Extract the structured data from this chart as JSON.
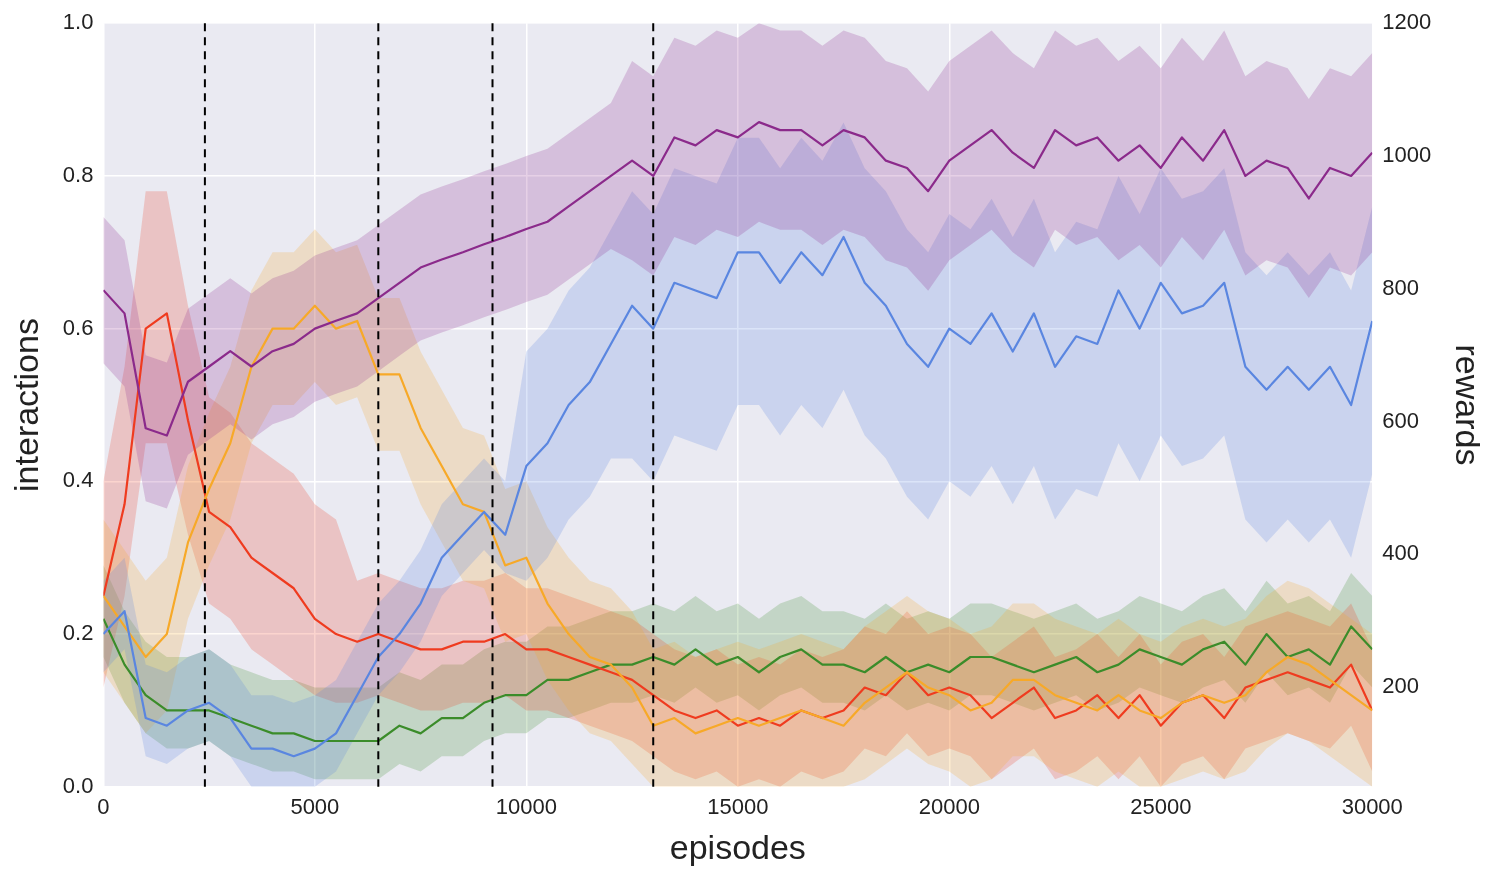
{
  "chart_data": {
    "type": "line",
    "xlabel": "episodes",
    "ylabel": "interactions",
    "y2label": "rewards",
    "x": [
      0,
      500,
      1000,
      1500,
      2000,
      2500,
      3000,
      3500,
      4000,
      4500,
      5000,
      5500,
      6000,
      6500,
      7000,
      7500,
      8000,
      8500,
      9000,
      9500,
      10000,
      10500,
      11000,
      11500,
      12000,
      12500,
      13000,
      13500,
      14000,
      14500,
      15000,
      15500,
      16000,
      16500,
      17000,
      17500,
      18000,
      18500,
      19000,
      19500,
      20000,
      20500,
      21000,
      21500,
      22000,
      22500,
      23000,
      23500,
      24000,
      24500,
      25000,
      25500,
      26000,
      26500,
      27000,
      27500,
      28000,
      28500,
      29000,
      29500,
      30000
    ],
    "xlim": [
      0,
      30000
    ],
    "xticks": [
      0,
      5000,
      10000,
      15000,
      20000,
      25000,
      30000
    ],
    "ylim": [
      0,
      1
    ],
    "yticks": [
      {
        "value": 0,
        "label": "0.0"
      },
      0.2,
      0.4,
      0.6,
      0.8,
      {
        "value": 1,
        "label": "1.0"
      }
    ],
    "y2lim": [
      50,
      1200
    ],
    "y2ticks": [
      200,
      400,
      600,
      800,
      1000,
      1200
    ],
    "grid": true,
    "marker": "none",
    "series": [
      {
        "color": "#8b2a8b",
        "axis": "y2",
        "values": [
          798,
          763,
          590,
          579,
          660,
          683,
          706,
          683,
          706,
          717,
          740,
          752,
          763,
          786,
          809,
          832,
          844,
          855,
          867,
          878,
          890,
          901,
          924,
          947,
          970,
          993,
          970,
          1028,
          1016,
          1039,
          1028,
          1051,
          1039,
          1039,
          1016,
          1039,
          1028,
          993,
          982,
          947,
          993,
          1016,
          1039,
          1005,
          982,
          1039,
          1016,
          1028,
          993,
          1016,
          982,
          1028,
          993,
          1039,
          970,
          993,
          982,
          936,
          982,
          970,
          1005
        ],
        "lower": [
          688,
          653,
          480,
          469,
          550,
          573,
          596,
          573,
          596,
          607,
          630,
          642,
          653,
          676,
          699,
          722,
          734,
          745,
          757,
          768,
          780,
          791,
          814,
          837,
          860,
          843,
          820,
          878,
          866,
          889,
          878,
          901,
          889,
          889,
          866,
          889,
          878,
          843,
          832,
          797,
          843,
          866,
          889,
          855,
          832,
          889,
          866,
          878,
          843,
          866,
          832,
          878,
          843,
          889,
          820,
          843,
          832,
          786,
          832,
          820,
          855
        ],
        "upper": [
          908,
          873,
          700,
          689,
          770,
          793,
          816,
          793,
          816,
          827,
          850,
          862,
          873,
          896,
          919,
          942,
          954,
          965,
          977,
          988,
          1000,
          1011,
          1034,
          1057,
          1080,
          1143,
          1120,
          1178,
          1166,
          1189,
          1178,
          1200,
          1189,
          1189,
          1166,
          1189,
          1178,
          1143,
          1132,
          1097,
          1143,
          1166,
          1189,
          1155,
          1132,
          1189,
          1166,
          1178,
          1143,
          1166,
          1132,
          1178,
          1143,
          1189,
          1120,
          1143,
          1132,
          1086,
          1132,
          1120,
          1155
        ]
      },
      {
        "color": "#5a86e0",
        "values": [
          0.2,
          0.23,
          0.09,
          0.08,
          0.1,
          0.11,
          0.09,
          0.05,
          0.05,
          0.04,
          0.05,
          0.07,
          0.12,
          0.17,
          0.2,
          0.24,
          0.3,
          0.33,
          0.36,
          0.33,
          0.42,
          0.45,
          0.5,
          0.53,
          0.58,
          0.63,
          0.6,
          0.66,
          0.65,
          0.64,
          0.7,
          0.7,
          0.66,
          0.7,
          0.67,
          0.72,
          0.66,
          0.63,
          0.58,
          0.55,
          0.6,
          0.58,
          0.62,
          0.57,
          0.62,
          0.55,
          0.59,
          0.58,
          0.65,
          0.6,
          0.66,
          0.62,
          0.63,
          0.66,
          0.55,
          0.52,
          0.55,
          0.52,
          0.55,
          0.5,
          0.61
        ],
        "lower": [
          0.15,
          0.18,
          0.04,
          0.03,
          0.05,
          0.06,
          0.04,
          0,
          0,
          0,
          0,
          0.02,
          0.07,
          0.12,
          0.15,
          0.19,
          0.25,
          0.28,
          0.31,
          0.28,
          0.27,
          0.3,
          0.35,
          0.38,
          0.43,
          0.43,
          0.4,
          0.46,
          0.45,
          0.44,
          0.5,
          0.5,
          0.46,
          0.5,
          0.47,
          0.52,
          0.46,
          0.43,
          0.38,
          0.35,
          0.4,
          0.38,
          0.42,
          0.37,
          0.42,
          0.35,
          0.39,
          0.38,
          0.45,
          0.4,
          0.46,
          0.42,
          0.43,
          0.46,
          0.35,
          0.32,
          0.35,
          0.32,
          0.35,
          0.3,
          0.41
        ],
        "upper": [
          0.27,
          0.3,
          0.16,
          0.15,
          0.17,
          0.18,
          0.16,
          0.12,
          0.12,
          0.11,
          0.12,
          0.14,
          0.19,
          0.24,
          0.27,
          0.31,
          0.37,
          0.4,
          0.43,
          0.4,
          0.57,
          0.6,
          0.65,
          0.68,
          0.73,
          0.78,
          0.75,
          0.81,
          0.8,
          0.79,
          0.85,
          0.85,
          0.81,
          0.85,
          0.82,
          0.87,
          0.81,
          0.78,
          0.73,
          0.7,
          0.75,
          0.73,
          0.77,
          0.72,
          0.77,
          0.7,
          0.74,
          0.73,
          0.8,
          0.75,
          0.81,
          0.77,
          0.78,
          0.81,
          0.7,
          0.67,
          0.7,
          0.67,
          0.7,
          0.65,
          0.76
        ]
      },
      {
        "color": "#f7a928",
        "values": [
          0.25,
          0.21,
          0.17,
          0.2,
          0.32,
          0.39,
          0.45,
          0.55,
          0.6,
          0.6,
          0.63,
          0.6,
          0.61,
          0.54,
          0.54,
          0.47,
          0.42,
          0.37,
          0.36,
          0.29,
          0.3,
          0.24,
          0.2,
          0.17,
          0.16,
          0.13,
          0.08,
          0.09,
          0.07,
          0.08,
          0.09,
          0.08,
          0.09,
          0.1,
          0.09,
          0.08,
          0.11,
          0.13,
          0.15,
          0.13,
          0.12,
          0.1,
          0.11,
          0.14,
          0.14,
          0.12,
          0.11,
          0.1,
          0.12,
          0.1,
          0.09,
          0.11,
          0.12,
          0.11,
          0.12,
          0.15,
          0.17,
          0.16,
          0.14,
          0.12,
          0.1
        ],
        "lower": [
          0.15,
          0.11,
          0.07,
          0.1,
          0.22,
          0.29,
          0.35,
          0.45,
          0.5,
          0.5,
          0.53,
          0.5,
          0.51,
          0.44,
          0.44,
          0.37,
          0.32,
          0.27,
          0.26,
          0.19,
          0.2,
          0.14,
          0.1,
          0.07,
          0.06,
          0.03,
          0,
          0,
          0,
          0,
          0,
          0,
          0,
          0,
          0,
          0,
          0.01,
          0.03,
          0.05,
          0.03,
          0.02,
          0,
          0.01,
          0.04,
          0.04,
          0.02,
          0.01,
          0,
          0.02,
          0,
          0,
          0.01,
          0.02,
          0.01,
          0.02,
          0.05,
          0.07,
          0.06,
          0.04,
          0.02,
          0
        ],
        "upper": [
          0.35,
          0.31,
          0.27,
          0.3,
          0.42,
          0.49,
          0.55,
          0.65,
          0.7,
          0.7,
          0.73,
          0.7,
          0.71,
          0.64,
          0.64,
          0.57,
          0.52,
          0.47,
          0.46,
          0.39,
          0.4,
          0.34,
          0.3,
          0.27,
          0.26,
          0.23,
          0.18,
          0.19,
          0.17,
          0.18,
          0.19,
          0.18,
          0.19,
          0.2,
          0.19,
          0.18,
          0.21,
          0.23,
          0.25,
          0.23,
          0.22,
          0.2,
          0.21,
          0.24,
          0.24,
          0.22,
          0.21,
          0.2,
          0.22,
          0.2,
          0.19,
          0.21,
          0.22,
          0.21,
          0.22,
          0.25,
          0.27,
          0.26,
          0.24,
          0.22,
          0.2
        ]
      },
      {
        "color": "#ef3b1f",
        "values": [
          0.25,
          0.37,
          0.6,
          0.62,
          0.48,
          0.36,
          0.34,
          0.3,
          0.28,
          0.26,
          0.22,
          0.2,
          0.19,
          0.2,
          0.19,
          0.18,
          0.18,
          0.19,
          0.19,
          0.2,
          0.18,
          0.18,
          0.17,
          0.16,
          0.15,
          0.14,
          0.12,
          0.1,
          0.09,
          0.1,
          0.08,
          0.09,
          0.08,
          0.1,
          0.09,
          0.1,
          0.13,
          0.12,
          0.15,
          0.12,
          0.13,
          0.12,
          0.09,
          0.11,
          0.13,
          0.09,
          0.1,
          0.12,
          0.09,
          0.12,
          0.08,
          0.11,
          0.12,
          0.09,
          0.13,
          0.14,
          0.15,
          0.14,
          0.13,
          0.16,
          0.1
        ],
        "lower": [
          0.13,
          0.25,
          0.45,
          0.45,
          0.33,
          0.24,
          0.22,
          0.18,
          0.16,
          0.14,
          0.12,
          0.11,
          0.11,
          0.12,
          0.11,
          0.1,
          0.1,
          0.11,
          0.11,
          0.12,
          0.1,
          0.1,
          0.09,
          0.08,
          0.07,
          0.06,
          0.04,
          0.02,
          0.01,
          0.02,
          0,
          0.01,
          0,
          0.02,
          0.01,
          0.02,
          0.05,
          0.04,
          0.07,
          0.04,
          0.05,
          0.04,
          0.01,
          0.03,
          0.05,
          0.01,
          0.02,
          0.04,
          0.01,
          0.04,
          0,
          0.03,
          0.04,
          0.01,
          0.05,
          0.06,
          0.07,
          0.06,
          0.05,
          0.08,
          0.02
        ],
        "upper": [
          0.4,
          0.55,
          0.78,
          0.78,
          0.63,
          0.51,
          0.49,
          0.45,
          0.43,
          0.41,
          0.37,
          0.35,
          0.27,
          0.28,
          0.27,
          0.26,
          0.26,
          0.27,
          0.27,
          0.28,
          0.26,
          0.26,
          0.25,
          0.24,
          0.23,
          0.22,
          0.2,
          0.18,
          0.17,
          0.18,
          0.16,
          0.17,
          0.16,
          0.18,
          0.17,
          0.18,
          0.21,
          0.2,
          0.23,
          0.2,
          0.21,
          0.2,
          0.17,
          0.19,
          0.21,
          0.17,
          0.18,
          0.2,
          0.17,
          0.2,
          0.16,
          0.19,
          0.2,
          0.17,
          0.21,
          0.22,
          0.23,
          0.22,
          0.21,
          0.24,
          0.18
        ]
      },
      {
        "color": "#3b8c2a",
        "values": [
          0.22,
          0.16,
          0.12,
          0.1,
          0.1,
          0.1,
          0.09,
          0.08,
          0.07,
          0.07,
          0.06,
          0.06,
          0.06,
          0.06,
          0.08,
          0.07,
          0.09,
          0.09,
          0.11,
          0.12,
          0.12,
          0.14,
          0.14,
          0.15,
          0.16,
          0.16,
          0.17,
          0.16,
          0.18,
          0.16,
          0.17,
          0.15,
          0.17,
          0.18,
          0.16,
          0.16,
          0.15,
          0.17,
          0.15,
          0.16,
          0.15,
          0.17,
          0.17,
          0.16,
          0.15,
          0.16,
          0.17,
          0.15,
          0.16,
          0.18,
          0.17,
          0.16,
          0.18,
          0.19,
          0.16,
          0.2,
          0.17,
          0.18,
          0.16,
          0.21,
          0.18
        ],
        "lower": [
          0.17,
          0.11,
          0.07,
          0.05,
          0.05,
          0.06,
          0.04,
          0.03,
          0.02,
          0.02,
          0.01,
          0.01,
          0.01,
          0.01,
          0.03,
          0.02,
          0.04,
          0.04,
          0.06,
          0.07,
          0.07,
          0.09,
          0.09,
          0.1,
          0.11,
          0.11,
          0.12,
          0.11,
          0.13,
          0.11,
          0.12,
          0.1,
          0.12,
          0.13,
          0.11,
          0.11,
          0.1,
          0.12,
          0.1,
          0.11,
          0.1,
          0.12,
          0.12,
          0.11,
          0.1,
          0.11,
          0.12,
          0.1,
          0.11,
          0.13,
          0.12,
          0.11,
          0.13,
          0.14,
          0.11,
          0.15,
          0.12,
          0.13,
          0.11,
          0.16,
          0.13
        ],
        "upper": [
          0.29,
          0.23,
          0.19,
          0.17,
          0.17,
          0.18,
          0.16,
          0.15,
          0.14,
          0.14,
          0.13,
          0.13,
          0.13,
          0.13,
          0.15,
          0.14,
          0.16,
          0.16,
          0.18,
          0.19,
          0.19,
          0.21,
          0.21,
          0.22,
          0.23,
          0.23,
          0.24,
          0.23,
          0.25,
          0.23,
          0.24,
          0.22,
          0.24,
          0.25,
          0.23,
          0.23,
          0.22,
          0.24,
          0.22,
          0.23,
          0.22,
          0.24,
          0.24,
          0.23,
          0.22,
          0.23,
          0.24,
          0.22,
          0.23,
          0.25,
          0.24,
          0.23,
          0.25,
          0.26,
          0.23,
          0.27,
          0.24,
          0.25,
          0.23,
          0.28,
          0.25
        ]
      }
    ],
    "ref_lines": [
      {
        "axis": "x",
        "value": 2400,
        "color": "#000000",
        "line_style": "dashed"
      },
      {
        "axis": "x",
        "value": 6500,
        "color": "#000000",
        "line_style": "dashed"
      },
      {
        "axis": "x",
        "value": 9200,
        "color": "#000000",
        "line_style": "dashed"
      },
      {
        "axis": "x",
        "value": 13000,
        "color": "#000000",
        "line_style": "dashed"
      }
    ]
  }
}
